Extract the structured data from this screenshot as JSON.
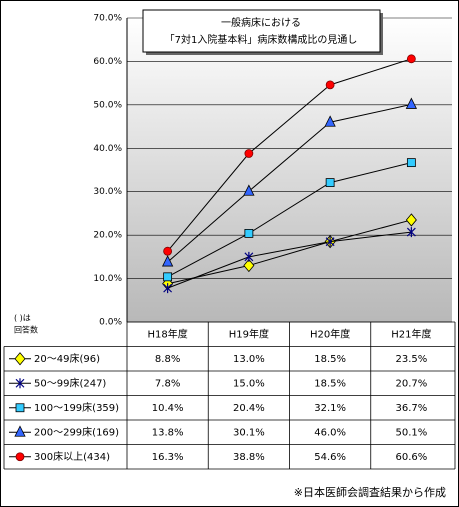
{
  "chart_data": {
    "type": "line",
    "title": [
      "一般病床における",
      "「7対1入院基本料」病床数構成比の見通し"
    ],
    "categories": [
      "H18年度",
      "H19年度",
      "H20年度",
      "H21年度"
    ],
    "ylim": [
      0,
      70
    ],
    "yticks": [
      {
        "value": 0,
        "label": "0.0%"
      },
      {
        "value": 10,
        "label": "10.0%"
      },
      {
        "value": 20,
        "label": "20.0%"
      },
      {
        "value": 30,
        "label": "30.0%"
      },
      {
        "value": 40,
        "label": "40.0%"
      },
      {
        "value": 50,
        "label": "50.0%"
      },
      {
        "value": 60,
        "label": "60.0%"
      },
      {
        "value": 70,
        "label": "70.0%"
      }
    ],
    "grid": true,
    "note": [
      "( )は",
      "回答数"
    ],
    "series": [
      {
        "name": "20～49床(96)",
        "color": "#ffff00",
        "marker": "diamond",
        "values": [
          8.8,
          13.0,
          18.5,
          23.5
        ],
        "value_labels": [
          "8.8%",
          "13.0%",
          "18.5%",
          "23.5%"
        ]
      },
      {
        "name": "50～99床(247)",
        "color": "#000080",
        "marker": "asterisk",
        "values": [
          7.8,
          15.0,
          18.5,
          20.7
        ],
        "value_labels": [
          "7.8%",
          "15.0%",
          "18.5%",
          "20.7%"
        ]
      },
      {
        "name": "100～199床(359)",
        "color": "#33ccff",
        "marker": "square",
        "values": [
          10.4,
          20.4,
          32.1,
          36.7
        ],
        "value_labels": [
          "10.4%",
          "20.4%",
          "32.1%",
          "36.7%"
        ]
      },
      {
        "name": "200～299床(169)",
        "color": "#3366ff",
        "marker": "triangle",
        "values": [
          13.8,
          30.1,
          46.0,
          50.1
        ],
        "value_labels": [
          "13.8%",
          "30.1%",
          "46.0%",
          "50.1%"
        ]
      },
      {
        "name": "300床以上(434)",
        "color": "#ff0000",
        "marker": "circle",
        "values": [
          16.3,
          38.8,
          54.6,
          60.6
        ],
        "value_labels": [
          "16.3%",
          "38.8%",
          "54.6%",
          "60.6%"
        ]
      }
    ],
    "footnote": "※日本医師会調査結果から作成"
  }
}
